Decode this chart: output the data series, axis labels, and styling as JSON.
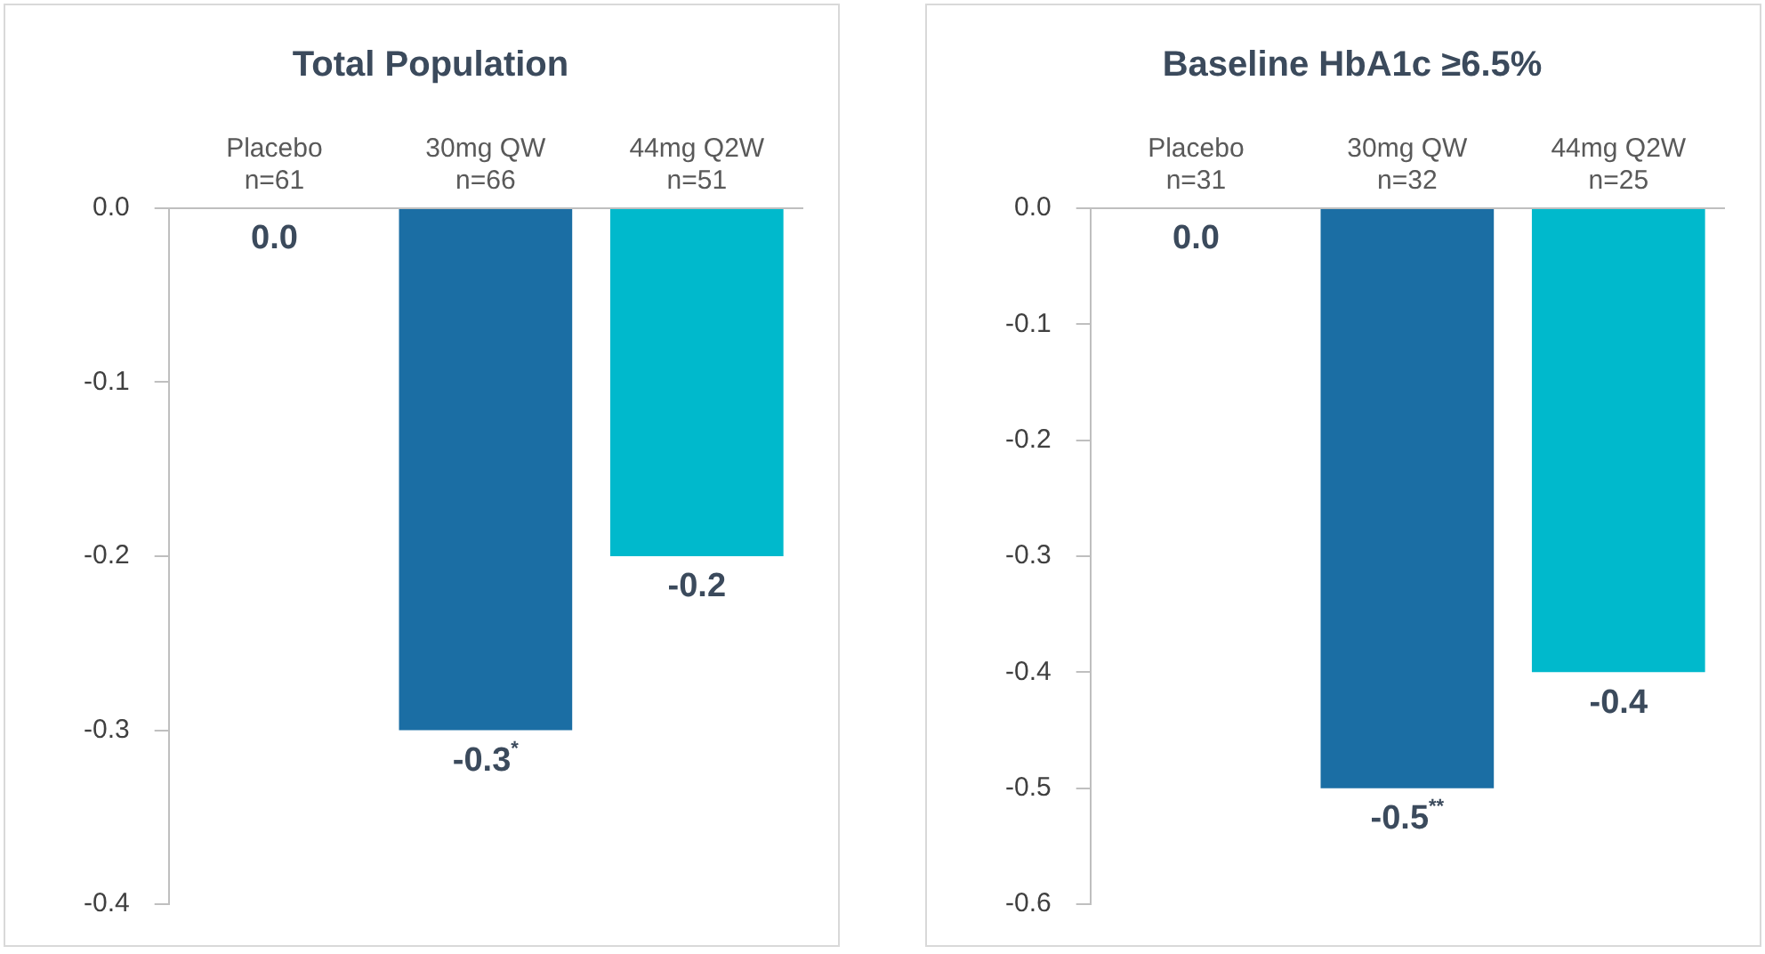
{
  "chart_data": [
    {
      "type": "bar",
      "title": "Total Population",
      "categories": [
        "Placebo\nn=61",
        "30mg QW\nn=66",
        "44mg Q2W\nn=51"
      ],
      "values": [
        0.0,
        -0.3,
        -0.2
      ],
      "colors": [
        "#1b6ea4",
        "#1b6ea4",
        "#00b9cc"
      ],
      "value_labels": [
        "0.0",
        "-0.3$^{*}$",
        "-0.2"
      ],
      "ylim": [
        -0.4,
        0
      ],
      "yticks": [
        {
          "value": 0,
          "label": "0.0"
        },
        -0.1,
        -0.2,
        -0.3,
        -0.4
      ],
      "grid": false,
      "legend": false
    },
    {
      "type": "bar",
      "title": "Baseline HbA1c ≥6.5%",
      "categories": [
        "Placebo\nn=31",
        "30mg QW\nn=32",
        "44mg Q2W\nn=25"
      ],
      "values": [
        0.0,
        -0.5,
        -0.4
      ],
      "colors": [
        "#1b6ea4",
        "#1b6ea4",
        "#00b9cc"
      ],
      "value_labels": [
        "0.0",
        "-0.5$^{**}$",
        "-0.4"
      ],
      "ylim": [
        -0.6,
        0
      ],
      "yticks": [
        {
          "value": 0,
          "label": "0.0"
        },
        -0.1,
        -0.2,
        -0.3,
        -0.4,
        -0.5,
        -0.6
      ],
      "grid": false,
      "legend": false
    }
  ]
}
